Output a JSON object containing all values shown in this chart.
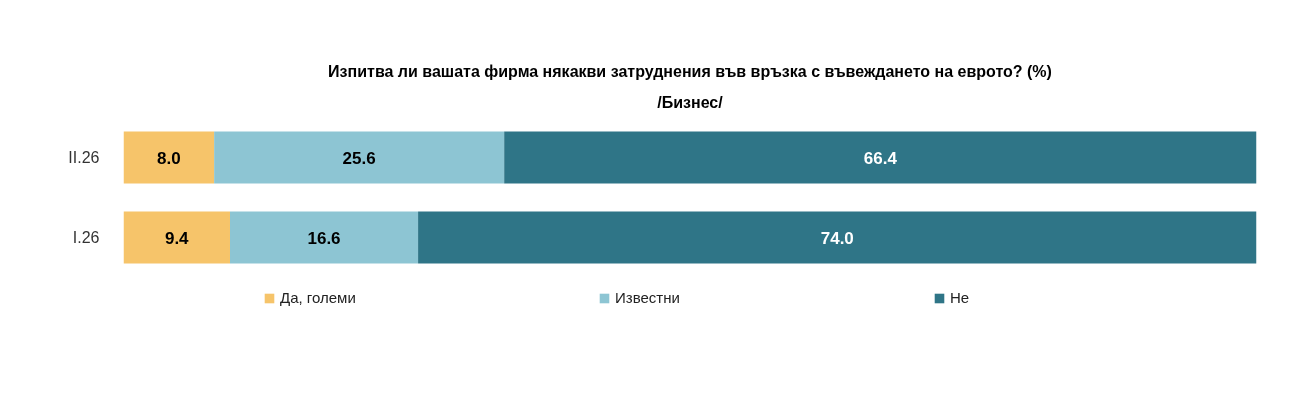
{
  "chart_data": {
    "type": "bar",
    "orientation": "horizontal",
    "stacked": true,
    "title": "Изпитва ли вашата фирма някакви затруднения във връзка с въвеждането на еврото? (%)",
    "subtitle": "/Бизнес/",
    "categories": [
      "II.26",
      "I.26"
    ],
    "series": [
      {
        "name": "Да, големи",
        "color": "#f6c46a",
        "values": [
          8.0,
          9.4
        ],
        "value_labels": [
          "8.0",
          "9.4"
        ]
      },
      {
        "name": "Известни",
        "color": "#8dc5d3",
        "values": [
          25.6,
          16.6
        ],
        "value_labels": [
          "25.6",
          "16.6"
        ]
      },
      {
        "name": "Не",
        "color": "#2f7587",
        "values": [
          66.4,
          74.0
        ],
        "value_labels": [
          "66.4",
          "74.0"
        ]
      }
    ],
    "xlim": [
      0,
      100
    ],
    "legend": "bottom",
    "grid": false,
    "tick_labels": "y"
  }
}
